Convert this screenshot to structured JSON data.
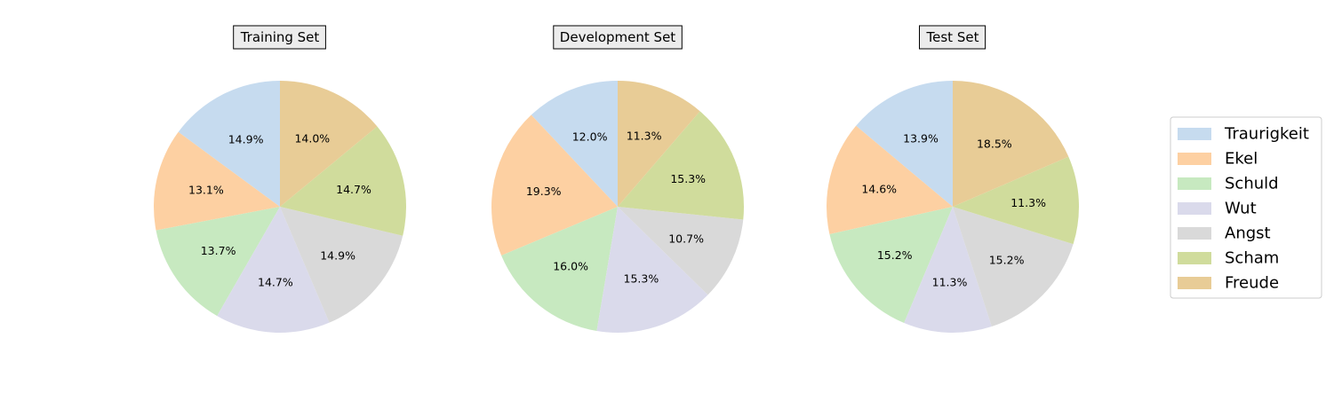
{
  "chart_data": {
    "type": "pie",
    "categories": [
      "Traurigkeit",
      "Ekel",
      "Schuld",
      "Wut",
      "Angst",
      "Scham",
      "Freude"
    ],
    "colors": [
      "#c6dbef",
      "#fdd0a2",
      "#c7e9c0",
      "#dadaeb",
      "#d9d9d9",
      "#d0dc9c",
      "#e8cc96"
    ],
    "legend": {
      "placement": "right",
      "entries": [
        "Traurigkeit",
        "Ekel",
        "Schuld",
        "Wut",
        "Angst",
        "Scham",
        "Freude"
      ]
    },
    "pies": [
      {
        "title": "Training Set",
        "values": [
          14.9,
          13.1,
          13.7,
          14.7,
          14.9,
          14.7,
          14.0
        ],
        "labels": [
          "14.9%",
          "13.1%",
          "13.7%",
          "14.7%",
          "14.9%",
          "14.7%",
          "14.0%"
        ]
      },
      {
        "title": "Development Set",
        "values": [
          12.0,
          19.3,
          16.0,
          15.3,
          10.7,
          15.3,
          11.3
        ],
        "labels": [
          "12.0%",
          "19.3%",
          "16.0%",
          "15.3%",
          "10.7%",
          "15.3%",
          "11.3%"
        ]
      },
      {
        "title": "Test Set",
        "values": [
          13.9,
          14.6,
          15.2,
          11.3,
          15.2,
          11.3,
          18.5
        ],
        "labels": [
          "13.9%",
          "14.6%",
          "15.2%",
          "11.3%",
          "15.2%",
          "11.3%",
          "18.5%"
        ]
      }
    ]
  }
}
